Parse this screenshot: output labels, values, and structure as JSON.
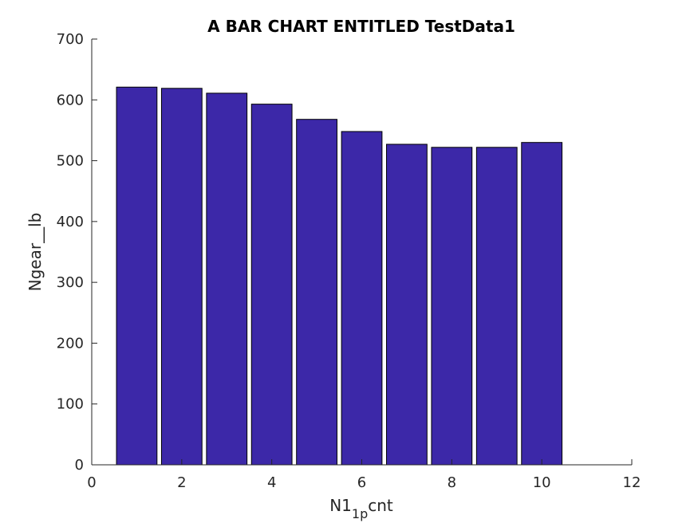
{
  "chart_data": {
    "type": "bar",
    "title": "A BAR CHART ENTITLED TestData1",
    "xlabel_main": "N1",
    "xlabel_sub": "1p",
    "xlabel_tail": "cnt",
    "ylabel": "Ngear__lb",
    "x": [
      1,
      2,
      3,
      4,
      5,
      6,
      7,
      8,
      9,
      10
    ],
    "values": [
      621,
      619,
      611,
      593,
      568,
      548,
      527,
      522,
      522,
      530
    ],
    "xlim": [
      0,
      12
    ],
    "ylim": [
      0,
      700
    ],
    "xticks": [
      0,
      2,
      4,
      6,
      8,
      10,
      12
    ],
    "yticks": [
      0,
      100,
      200,
      300,
      400,
      500,
      600,
      700
    ],
    "bar_color": "#3c28a8",
    "grid": false
  }
}
